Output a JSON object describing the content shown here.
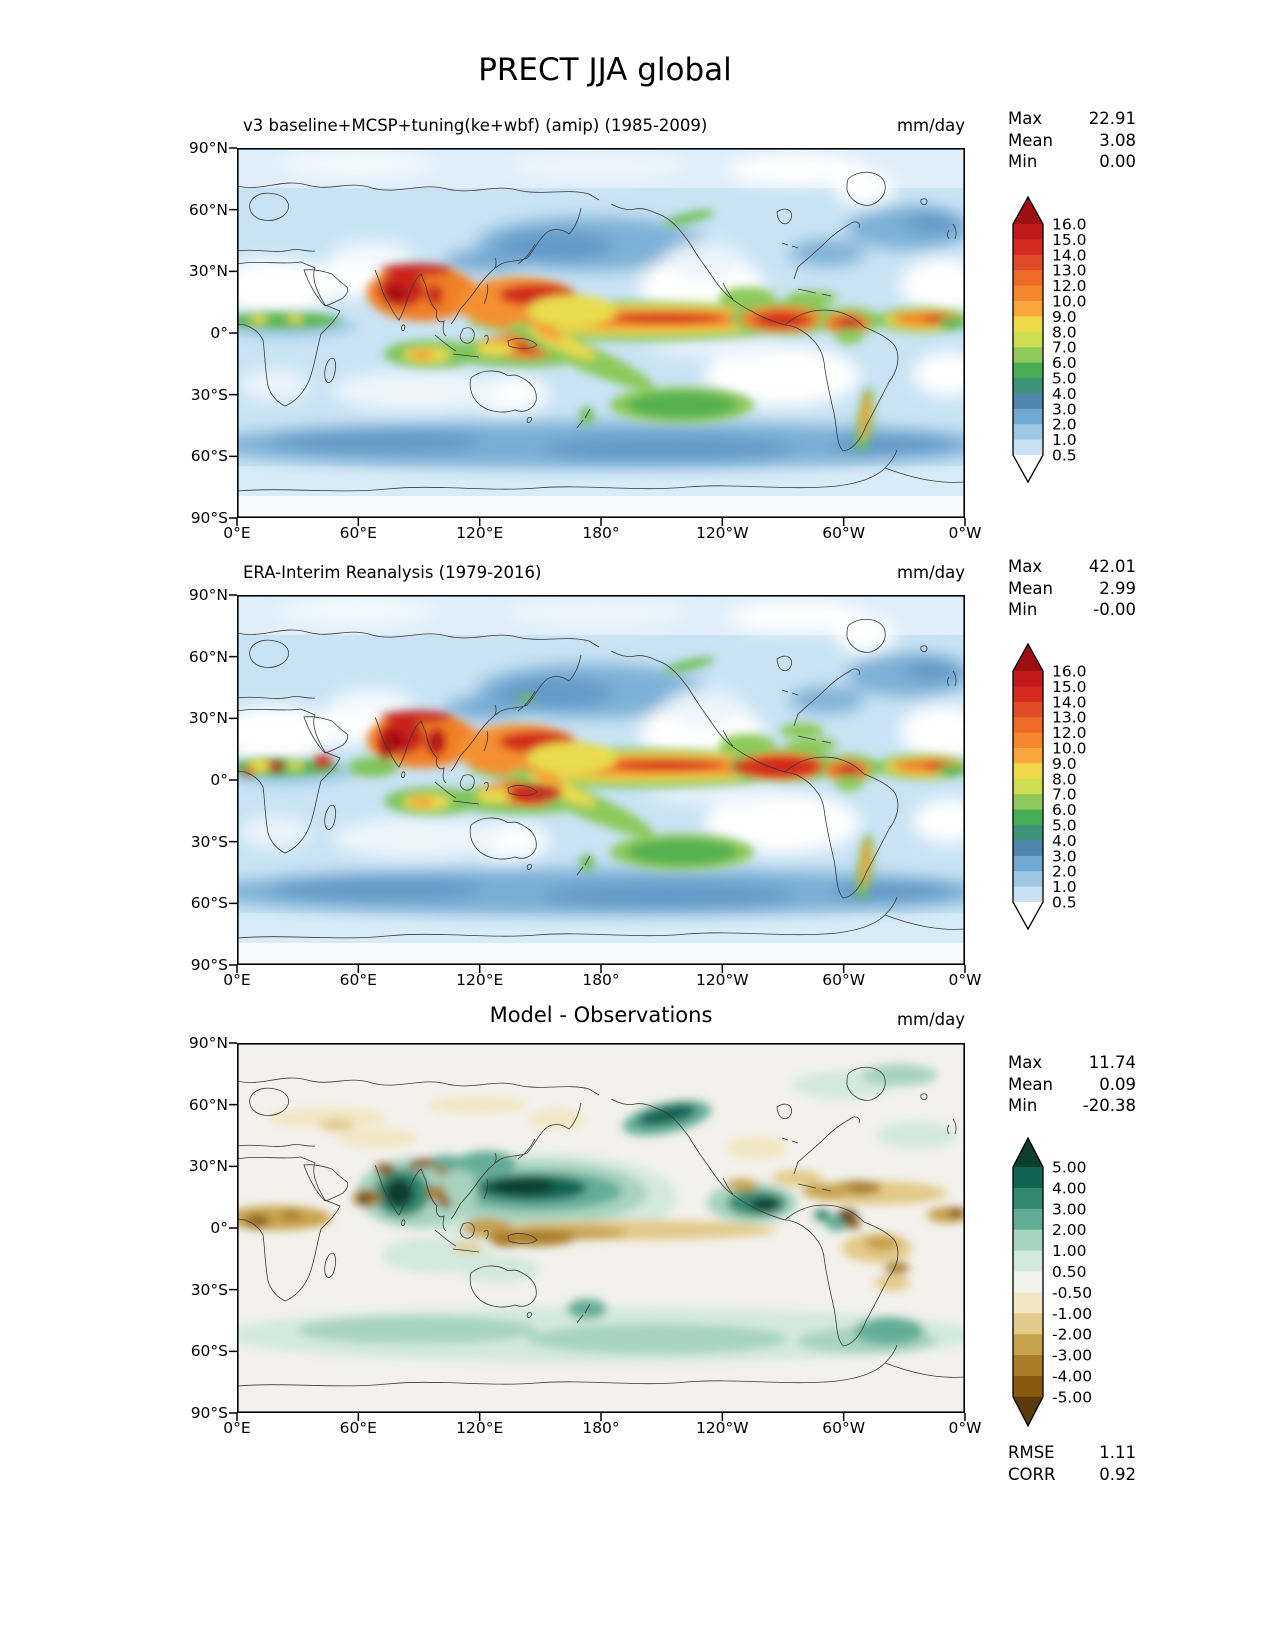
{
  "figure_title": "PRECT JJA global",
  "axes": {
    "lat": [
      "90°N",
      "60°N",
      "30°N",
      "0°",
      "30°S",
      "60°S",
      "90°S"
    ],
    "lon": [
      "0°E",
      "60°E",
      "120°E",
      "180°",
      "120°W",
      "60°W",
      "0°W"
    ]
  },
  "panels": [
    {
      "title": "v3 baseline+MCSP+tuning(ke+wbf) (amip) (1985-2009)",
      "units": "mm/day",
      "stats": [
        [
          "Max",
          "22.91"
        ],
        [
          "Mean",
          "3.08"
        ],
        [
          "Min",
          "0.00"
        ]
      ]
    },
    {
      "title": "ERA-Interim Reanalysis (1979-2016)",
      "units": "mm/day",
      "stats": [
        [
          "Max",
          "42.01"
        ],
        [
          "Mean",
          "2.99"
        ],
        [
          "Min",
          "-0.00"
        ]
      ]
    },
    {
      "title": "Model - Observations",
      "units": "mm/day",
      "stats": [
        [
          "Max",
          "11.74"
        ],
        [
          "Mean",
          "0.09"
        ],
        [
          "Min",
          "-20.38"
        ]
      ],
      "extra": [
        [
          "RMSE",
          "1.11"
        ],
        [
          "CORR",
          "0.92"
        ]
      ]
    }
  ],
  "colorbars": {
    "precip": {
      "labels": [
        "16.0",
        "15.0",
        "14.0",
        "13.0",
        "12.0",
        "10.0",
        "9.0",
        "8.0",
        "7.0",
        "6.0",
        "5.0",
        "4.0",
        "3.0",
        "2.0",
        "1.0",
        "0.5"
      ],
      "colors": [
        "#9f0e12",
        "#c01a1d",
        "#d42a20",
        "#e24b28",
        "#ee6a28",
        "#f5872d",
        "#f9a63c",
        "#f0d84b",
        "#cfdd50",
        "#90ca5b",
        "#47ad55",
        "#3d9478",
        "#4f86ae",
        "#6fa8d2",
        "#9cc8e4",
        "#c9e2f3",
        "#ffffff"
      ]
    },
    "diff": {
      "labels": [
        "5.00",
        "4.00",
        "3.00",
        "2.00",
        "1.00",
        "0.50",
        "-0.50",
        "-1.00",
        "-2.00",
        "-3.00",
        "-4.00",
        "-5.00"
      ],
      "colors": [
        "#0d3d2d",
        "#0e6352",
        "#31896f",
        "#63ad97",
        "#a7d3c1",
        "#d3e9dd",
        "#f1f2ea",
        "#f2e7c3",
        "#e2ca8a",
        "#c7a24c",
        "#a97c27",
        "#87590f",
        "#5a3a0a"
      ]
    }
  },
  "chart_data": {
    "type": "heatmap",
    "title": "PRECT JJA global",
    "variable": "PRECT",
    "season": "JJA",
    "region": "global",
    "units": "mm/day",
    "projection": "lat-lon, 0°E to 0°W (centered on 180°)",
    "panels": [
      {
        "title": "v3 baseline+MCSP+tuning(ke+wbf) (amip) (1985-2009)",
        "role": "model",
        "max": 22.91,
        "mean": 3.08,
        "min": 0.0
      },
      {
        "title": "ERA-Interim Reanalysis (1979-2016)",
        "role": "observations",
        "max": 42.01,
        "mean": 2.99,
        "min": -0.0
      },
      {
        "title": "Model - Observations",
        "role": "difference",
        "max": 11.74,
        "mean": 0.09,
        "min": -20.38,
        "rmse": 1.11,
        "corr": 0.92
      }
    ],
    "x_axis": {
      "label": "longitude",
      "ticks": [
        "0°E",
        "60°E",
        "120°E",
        "180°",
        "120°W",
        "60°W",
        "0°W"
      ]
    },
    "y_axis": {
      "label": "latitude",
      "ticks": [
        "90°N",
        "60°N",
        "30°N",
        "0°",
        "30°S",
        "60°S",
        "90°S"
      ]
    },
    "precip_colorbar_levels": [
      0.5,
      1.0,
      2.0,
      3.0,
      4.0,
      5.0,
      6.0,
      7.0,
      8.0,
      9.0,
      10.0,
      12.0,
      13.0,
      14.0,
      15.0,
      16.0
    ],
    "diff_colorbar_levels": [
      -5.0,
      -4.0,
      -3.0,
      -2.0,
      -1.0,
      -0.5,
      0.5,
      1.0,
      2.0,
      3.0,
      4.0,
      5.0
    ],
    "legend_position": "right of each panel",
    "grid": false
  }
}
